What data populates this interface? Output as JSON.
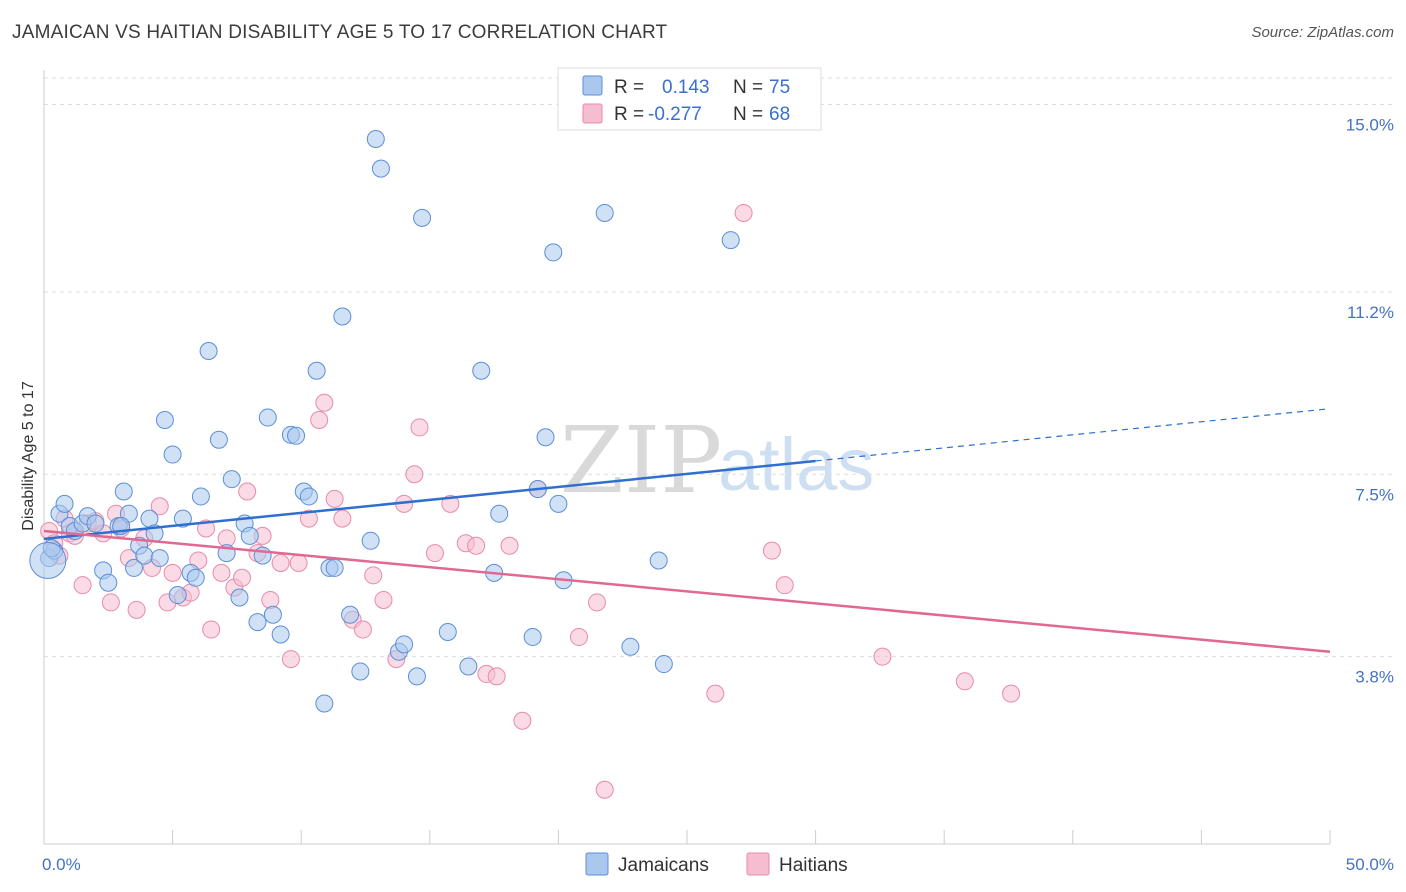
{
  "title": "JAMAICAN VS HAITIAN DISABILITY AGE 5 TO 17 CORRELATION CHART",
  "source": "Source: ZipAtlas.com",
  "watermark": {
    "zip": "ZIP",
    "atlas": "atlas"
  },
  "colors": {
    "jamaican_fill": "#aac8ee",
    "jamaican_stroke": "#5b8fd6",
    "jamaican_line": "#2f6fd0",
    "haitian_fill": "#f6bdd0",
    "haitian_stroke": "#e88aab",
    "haitian_line": "#e06892",
    "grid": "#dddddd",
    "tick_label": "#4472c4"
  },
  "legend": {
    "rows": [
      {
        "r_label": "R =",
        "r_value": "0.143",
        "n_label": "N =",
        "n_value": "75",
        "series": "Jamaicans"
      },
      {
        "r_label": "R =",
        "r_value": "-0.277",
        "n_label": "N =",
        "n_value": "68",
        "series": "Haitians"
      }
    ]
  },
  "chart_data": {
    "type": "scatter",
    "xlabel": "",
    "ylabel": "Disability Age 5 to 17",
    "xlim": [
      0,
      50
    ],
    "ylim": [
      0,
      15.7
    ],
    "x_tick_labels": {
      "left": "0.0%",
      "right": "50.0%"
    },
    "y_ticks": [
      {
        "value": 3.8,
        "label": "3.8%"
      },
      {
        "value": 7.5,
        "label": "7.5%"
      },
      {
        "value": 11.2,
        "label": "11.2%"
      },
      {
        "value": 15.0,
        "label": "15.0%"
      }
    ],
    "grid": true,
    "legend_position": "top-center",
    "series": [
      {
        "name": "Jamaicans",
        "trend": {
          "x0": 0,
          "y0": 6.19,
          "x1": 30,
          "y1": 7.77,
          "dashed_to_x": 50,
          "dashed_to_y": 8.83
        },
        "points": [
          [
            0.2,
            5.8
          ],
          [
            0.4,
            5.95
          ],
          [
            0.6,
            6.7
          ],
          [
            0.8,
            6.9
          ],
          [
            1.0,
            6.45
          ],
          [
            1.2,
            6.35
          ],
          [
            1.5,
            6.5
          ],
          [
            1.7,
            6.65
          ],
          [
            2.0,
            6.5
          ],
          [
            2.3,
            5.55
          ],
          [
            2.5,
            5.3
          ],
          [
            2.9,
            6.45
          ],
          [
            3.1,
            7.15
          ],
          [
            3.3,
            6.7
          ],
          [
            3.5,
            5.6
          ],
          [
            3.7,
            6.05
          ],
          [
            3.9,
            5.85
          ],
          [
            4.1,
            6.6
          ],
          [
            4.3,
            6.3
          ],
          [
            4.5,
            5.8
          ],
          [
            4.7,
            8.6
          ],
          [
            5.0,
            7.9
          ],
          [
            5.2,
            5.05
          ],
          [
            5.4,
            6.6
          ],
          [
            5.7,
            5.5
          ],
          [
            5.9,
            5.4
          ],
          [
            6.1,
            7.05
          ],
          [
            6.4,
            10.0
          ],
          [
            6.8,
            8.2
          ],
          [
            7.1,
            5.9
          ],
          [
            7.3,
            7.4
          ],
          [
            7.6,
            5.0
          ],
          [
            7.8,
            6.5
          ],
          [
            8.0,
            6.25
          ],
          [
            8.3,
            4.5
          ],
          [
            8.5,
            5.85
          ],
          [
            8.7,
            8.65
          ],
          [
            8.9,
            4.65
          ],
          [
            9.2,
            4.25
          ],
          [
            9.6,
            8.3
          ],
          [
            9.8,
            8.28
          ],
          [
            10.1,
            7.15
          ],
          [
            10.3,
            7.05
          ],
          [
            10.6,
            9.6
          ],
          [
            10.9,
            2.85
          ],
          [
            11.1,
            5.6
          ],
          [
            11.3,
            5.6
          ],
          [
            11.6,
            10.7
          ],
          [
            11.9,
            4.65
          ],
          [
            12.3,
            3.5
          ],
          [
            12.7,
            6.15
          ],
          [
            12.9,
            14.3
          ],
          [
            13.1,
            13.7
          ],
          [
            13.8,
            3.9
          ],
          [
            14.0,
            4.05
          ],
          [
            14.5,
            3.4
          ],
          [
            14.7,
            12.7
          ],
          [
            15.7,
            4.3
          ],
          [
            16.5,
            3.6
          ],
          [
            17.0,
            9.6
          ],
          [
            17.5,
            5.5
          ],
          [
            17.7,
            6.7
          ],
          [
            19.0,
            4.2
          ],
          [
            19.2,
            7.2
          ],
          [
            19.5,
            8.25
          ],
          [
            19.8,
            12.0
          ],
          [
            20.0,
            6.9
          ],
          [
            20.2,
            5.35
          ],
          [
            21.8,
            12.8
          ],
          [
            22.8,
            4.0
          ],
          [
            23.9,
            5.75
          ],
          [
            24.1,
            3.65
          ],
          [
            26.7,
            12.25
          ],
          [
            0.3,
            6.0
          ],
          [
            3.0,
            6.45
          ]
        ]
      },
      {
        "name": "Haitians",
        "trend": {
          "x0": 0,
          "y0": 6.35,
          "x1": 50,
          "y1": 3.9
        },
        "points": [
          [
            0.2,
            6.35
          ],
          [
            0.4,
            6.1
          ],
          [
            0.6,
            5.85
          ],
          [
            0.8,
            6.6
          ],
          [
            1.0,
            6.3
          ],
          [
            1.2,
            6.25
          ],
          [
            1.5,
            5.25
          ],
          [
            1.7,
            6.5
          ],
          [
            2.0,
            6.55
          ],
          [
            2.3,
            6.3
          ],
          [
            2.6,
            4.9
          ],
          [
            2.8,
            6.7
          ],
          [
            3.0,
            6.4
          ],
          [
            3.3,
            5.8
          ],
          [
            3.6,
            4.75
          ],
          [
            3.9,
            6.2
          ],
          [
            4.2,
            5.6
          ],
          [
            4.5,
            6.85
          ],
          [
            4.8,
            4.9
          ],
          [
            5.0,
            5.5
          ],
          [
            5.4,
            5.0
          ],
          [
            5.7,
            5.1
          ],
          [
            6.0,
            5.75
          ],
          [
            6.3,
            6.4
          ],
          [
            6.5,
            4.35
          ],
          [
            6.9,
            5.5
          ],
          [
            7.1,
            6.2
          ],
          [
            7.4,
            5.2
          ],
          [
            7.7,
            5.4
          ],
          [
            7.9,
            7.15
          ],
          [
            8.3,
            5.9
          ],
          [
            8.5,
            6.25
          ],
          [
            8.8,
            4.95
          ],
          [
            9.2,
            5.7
          ],
          [
            9.6,
            3.75
          ],
          [
            9.9,
            5.7
          ],
          [
            10.3,
            6.6
          ],
          [
            10.7,
            8.6
          ],
          [
            10.9,
            8.95
          ],
          [
            11.3,
            7.0
          ],
          [
            11.6,
            6.6
          ],
          [
            12.0,
            4.55
          ],
          [
            12.4,
            4.35
          ],
          [
            12.8,
            5.45
          ],
          [
            13.2,
            4.95
          ],
          [
            13.7,
            3.75
          ],
          [
            14.0,
            6.9
          ],
          [
            14.4,
            7.5
          ],
          [
            14.6,
            8.45
          ],
          [
            15.2,
            5.9
          ],
          [
            15.8,
            6.9
          ],
          [
            16.4,
            6.1
          ],
          [
            16.8,
            6.05
          ],
          [
            17.2,
            3.45
          ],
          [
            17.6,
            3.4
          ],
          [
            18.1,
            6.05
          ],
          [
            18.6,
            2.5
          ],
          [
            19.2,
            7.2
          ],
          [
            20.8,
            4.2
          ],
          [
            21.5,
            4.9
          ],
          [
            21.8,
            1.1
          ],
          [
            26.1,
            3.05
          ],
          [
            27.2,
            12.8
          ],
          [
            28.3,
            5.95
          ],
          [
            28.8,
            5.25
          ],
          [
            32.6,
            3.8
          ],
          [
            35.8,
            3.3
          ],
          [
            37.6,
            3.05
          ]
        ]
      }
    ]
  },
  "bottom_legend": [
    {
      "label": "Jamaicans"
    },
    {
      "label": "Haitians"
    }
  ]
}
